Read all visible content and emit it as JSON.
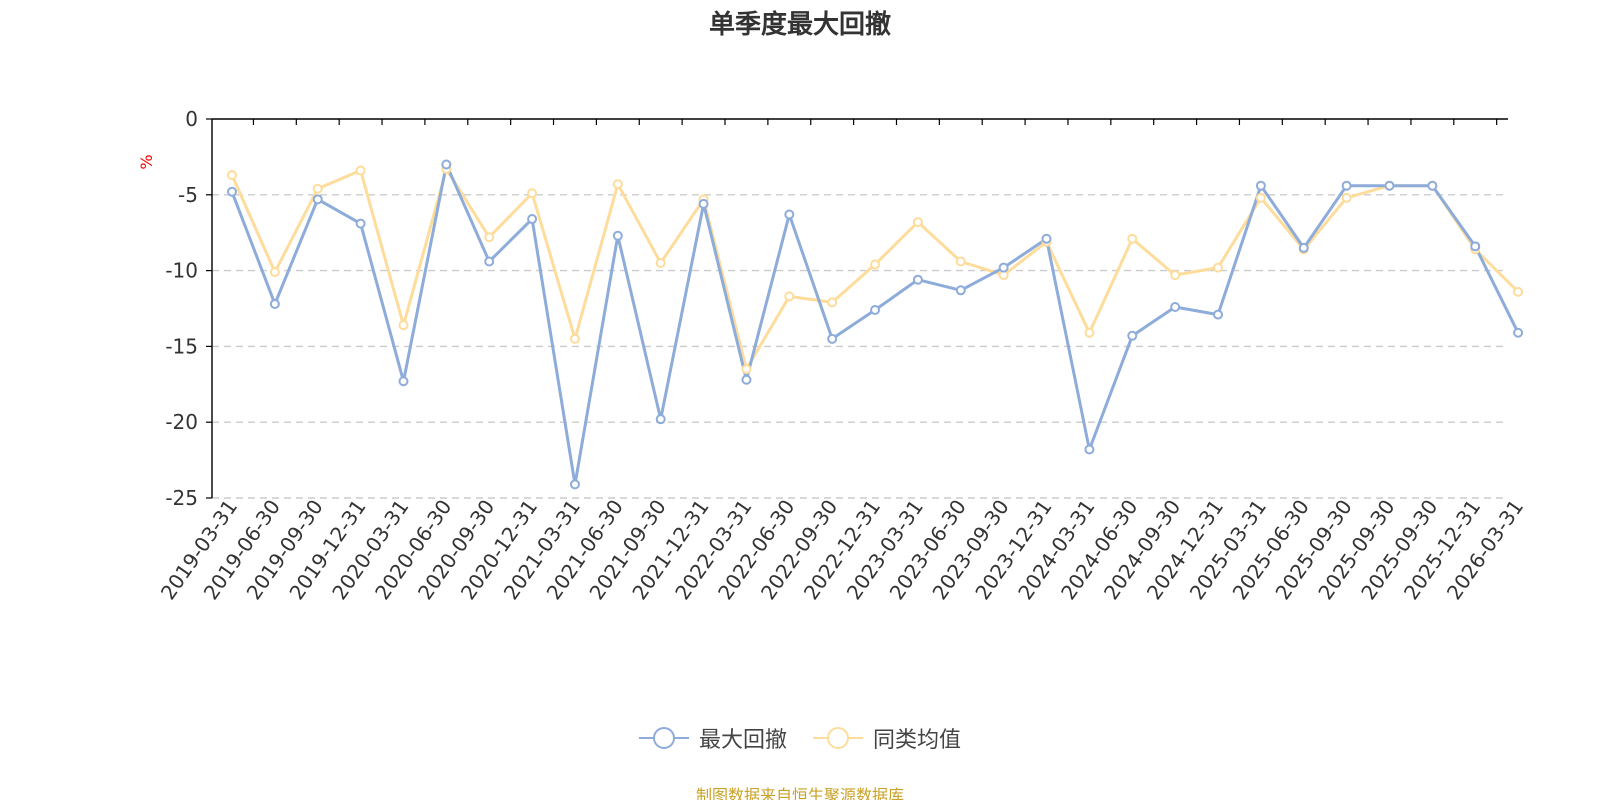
{
  "colors": {
    "series_1": "#8eacd9",
    "series_2": "#fddc9c",
    "title": "#333333",
    "unit": "#ff0000",
    "source": "#c9a227",
    "grid": "#cccccc",
    "axis": "#000000"
  },
  "source_text": "制图数据来自恒生聚源数据库",
  "chart_data": {
    "type": "line",
    "title": "单季度最大回撤",
    "ylabel": "%",
    "xlabel": "",
    "ylim": [
      -25,
      0
    ],
    "yticks": [
      0,
      -5,
      -10,
      -15,
      -20,
      -25
    ],
    "grid": true,
    "legend_position": "bottom",
    "categories": [
      "2019-03-31",
      "2019-06-30",
      "2019-09-30",
      "2019-12-31",
      "2020-03-31",
      "2020-06-30",
      "2020-09-30",
      "2020-12-31",
      "2021-03-31",
      "2021-06-30",
      "2021-09-30",
      "2021-12-31",
      "2022-03-31",
      "2022-06-30",
      "2022-09-30",
      "2022-12-31",
      "2023-03-31",
      "2023-06-30",
      "2023-09-30",
      "2023-12-31",
      "2024-03-31",
      "2024-06-30",
      "2024-09-30",
      "2024-12-31",
      "2025-03-31",
      "2025-06-30",
      "2025-09-30",
      "2025-09-30",
      "2025-09-30",
      "2025-12-31",
      "2026-03-31"
    ],
    "series": [
      {
        "name": "最大回撤",
        "values": [
          -4.8,
          -12.2,
          -5.3,
          -6.9,
          -17.3,
          -3.0,
          -9.4,
          -6.6,
          -24.1,
          -7.7,
          -19.8,
          -5.6,
          -17.2,
          -6.3,
          -14.5,
          -12.6,
          -10.6,
          -11.3,
          -9.8,
          -7.9,
          -21.8,
          -14.3,
          -12.4,
          -12.9,
          -4.4,
          -8.5,
          -4.4,
          -4.4,
          -4.4,
          -8.4,
          -14.1
        ]
      },
      {
        "name": "同类均值",
        "values": [
          -3.7,
          -10.1,
          -4.6,
          -3.4,
          -13.6,
          -3.3,
          -7.8,
          -4.9,
          -14.5,
          -4.3,
          -9.5,
          -5.3,
          -16.5,
          -11.7,
          -12.1,
          -9.6,
          -6.8,
          -9.4,
          -10.3,
          -8.1,
          -14.1,
          -7.9,
          -10.3,
          -9.8,
          -5.2,
          -8.6,
          -5.2,
          -4.4,
          -4.4,
          -8.6,
          -11.4
        ]
      }
    ]
  }
}
